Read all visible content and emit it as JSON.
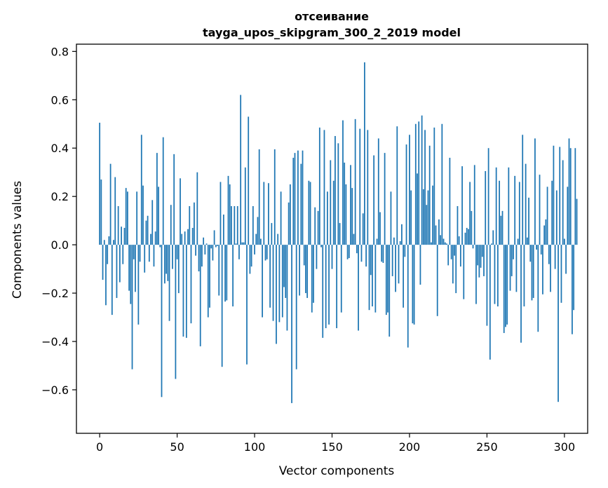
{
  "chart_data": {
    "type": "bar",
    "title_line1": "отсеивание",
    "title_line2": "tayga_upos_skipgram_300_2_2019 model",
    "xlabel": "Vector components",
    "ylabel": "Components values",
    "xlim": [
      -15,
      315
    ],
    "ylim": [
      -0.78,
      0.83
    ],
    "x_ticks": [
      0,
      50,
      100,
      150,
      200,
      250,
      300
    ],
    "y_ticks": [
      -0.6,
      -0.4,
      -0.2,
      0.0,
      0.2,
      0.4,
      0.6,
      0.8
    ],
    "x_tick_labels": [
      "0",
      "50",
      "100",
      "150",
      "200",
      "250",
      "300"
    ],
    "y_tick_labels": [
      "−0.6",
      "−0.4",
      "−0.2",
      "0.0",
      "0.2",
      "0.4",
      "0.6",
      "0.8"
    ],
    "bar_color": "#1f77b4",
    "values": [
      0.505,
      0.27,
      -0.145,
      0.02,
      -0.25,
      -0.08,
      0.035,
      0.335,
      -0.29,
      0.02,
      0.28,
      -0.22,
      0.16,
      -0.155,
      0.075,
      -0.08,
      0.07,
      0.235,
      0.22,
      -0.19,
      -0.245,
      -0.515,
      -0.06,
      -0.195,
      0.22,
      -0.33,
      -0.07,
      0.455,
      0.245,
      -0.115,
      0.1,
      0.12,
      -0.07,
      0.045,
      0.185,
      -0.09,
      0.055,
      0.38,
      0.24,
      -0.01,
      -0.63,
      0.445,
      -0.16,
      -0.12,
      -0.15,
      -0.315,
      0.165,
      -0.1,
      0.375,
      -0.555,
      -0.06,
      -0.2,
      0.275,
      0.045,
      -0.38,
      0.055,
      -0.385,
      0.065,
      0.16,
      -0.325,
      0.07,
      0.175,
      -0.045,
      0.3,
      -0.11,
      -0.42,
      -0.09,
      0.03,
      -0.04,
      0.005,
      -0.3,
      -0.26,
      -0.015,
      -0.065,
      0.06,
      -0.01,
      -0.005,
      -0.21,
      0.26,
      -0.505,
      0.125,
      -0.235,
      -0.23,
      0.285,
      0.25,
      0.16,
      -0.255,
      0.16,
      0.005,
      0.16,
      -0.06,
      0.62,
      0.01,
      0.01,
      0.32,
      -0.495,
      0.53,
      -0.12,
      -0.09,
      0.16,
      -0.04,
      0.045,
      0.115,
      0.395,
      0.025,
      -0.3,
      0.26,
      -0.065,
      -0.06,
      0.255,
      -0.26,
      0.09,
      -0.315,
      0.395,
      -0.41,
      0.045,
      -0.32,
      0.22,
      -0.3,
      -0.175,
      -0.22,
      -0.355,
      0.175,
      0.25,
      -0.655,
      0.36,
      0.38,
      -0.515,
      0.39,
      -0.21,
      0.335,
      0.39,
      -0.085,
      -0.2,
      -0.22,
      0.265,
      0.26,
      -0.28,
      -0.24,
      0.155,
      -0.1,
      0.14,
      0.485,
      -0.01,
      -0.385,
      0.475,
      -0.345,
      0.22,
      -0.33,
      0.35,
      -0.1,
      0.265,
      0.45,
      -0.345,
      0.42,
      0.09,
      -0.28,
      0.515,
      0.34,
      0.25,
      -0.06,
      -0.055,
      0.33,
      0.235,
      0.045,
      0.52,
      -0.035,
      -0.355,
      0.48,
      -0.07,
      0.13,
      0.755,
      -0.09,
      0.475,
      -0.27,
      -0.125,
      -0.255,
      0.37,
      -0.28,
      0.025,
      0.44,
      0.135,
      -0.07,
      -0.075,
      0.38,
      -0.29,
      -0.28,
      -0.38,
      0.22,
      -0.13,
      0.03,
      -0.195,
      0.49,
      -0.16,
      0.015,
      0.085,
      -0.26,
      -0.05,
      0.415,
      -0.425,
      0.455,
      0.225,
      -0.325,
      -0.33,
      0.5,
      0.295,
      0.51,
      -0.165,
      0.535,
      0.23,
      0.475,
      0.165,
      0.225,
      0.41,
      0.01,
      0.245,
      0.485,
      0.08,
      -0.295,
      0.105,
      0.04,
      0.5,
      0.025,
      0.01,
      0.005,
      -0.085,
      0.36,
      -0.06,
      -0.16,
      -0.045,
      -0.2,
      0.16,
      0.035,
      -0.09,
      0.325,
      -0.225,
      0.05,
      0.07,
      0.065,
      0.26,
      0.14,
      -0.015,
      0.33,
      -0.245,
      -0.085,
      -0.135,
      -0.095,
      -0.05,
      -0.13,
      0.305,
      -0.335,
      0.4,
      -0.475,
      0.005,
      0.06,
      -0.245,
      0.32,
      -0.255,
      0.265,
      0.12,
      0.14,
      -0.365,
      -0.34,
      -0.33,
      0.32,
      -0.19,
      -0.13,
      -0.06,
      0.285,
      -0.195,
      0.025,
      0.26,
      -0.405,
      0.455,
      -0.255,
      0.335,
      0.03,
      0.195,
      -0.07,
      -0.23,
      -0.22,
      0.44,
      -0.02,
      -0.36,
      0.29,
      -0.04,
      -0.205,
      0.08,
      0.105,
      0.24,
      -0.08,
      -0.195,
      0.265,
      0.41,
      -0.1,
      0.225,
      -0.65,
      0.405,
      -0.24,
      0.35,
      0.025,
      -0.12,
      0.24,
      0.44,
      0.4,
      -0.37,
      -0.27,
      0.4,
      0.19
    ]
  }
}
